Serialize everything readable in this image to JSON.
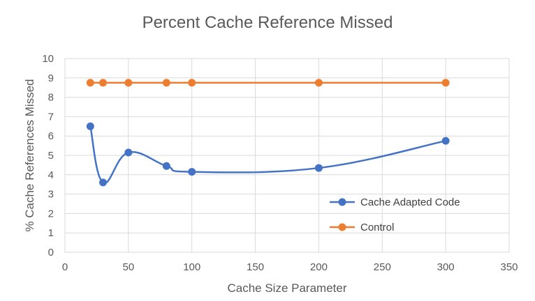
{
  "chart_data": {
    "type": "line",
    "title": "Percent Cache Reference Missed",
    "xlabel": "Cache Size Parameter",
    "ylabel": "% Cache References Missed",
    "xlim": [
      0,
      350
    ],
    "ylim": [
      0,
      10
    ],
    "x_ticks": [
      0,
      50,
      100,
      150,
      200,
      250,
      300,
      350
    ],
    "y_ticks": [
      0,
      1,
      2,
      3,
      4,
      5,
      6,
      7,
      8,
      9,
      10
    ],
    "grid": true,
    "smooth": true,
    "legend_position": "right",
    "x": [
      20,
      30,
      50,
      80,
      100,
      200,
      300
    ],
    "series": [
      {
        "name": "Cache Adapted Code",
        "color": "#4472C4",
        "values": [
          6.5,
          3.6,
          5.15,
          4.45,
          4.15,
          4.35,
          5.75
        ]
      },
      {
        "name": "Control",
        "color": "#ED7D31",
        "values": [
          8.75,
          8.75,
          8.75,
          8.75,
          8.75,
          8.75,
          8.75
        ]
      }
    ]
  }
}
